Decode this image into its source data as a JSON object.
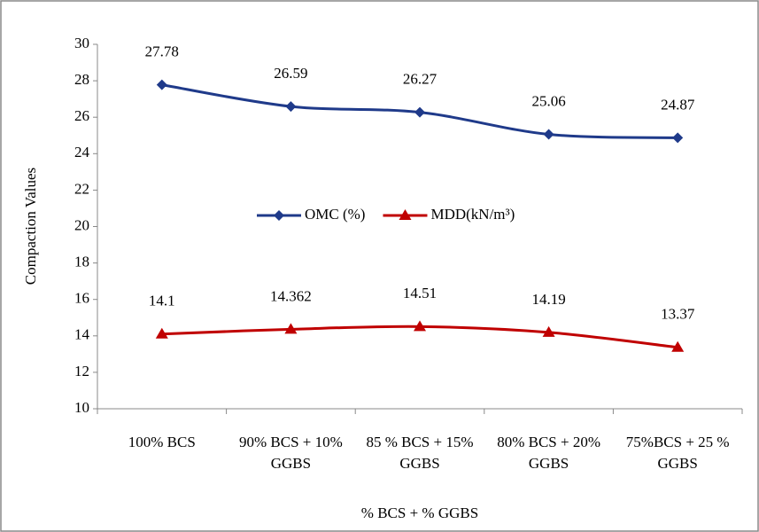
{
  "chart_data": {
    "type": "line",
    "x_label": "% BCS + % GGBS",
    "y_label": "Compaction Values",
    "categories": [
      "100% BCS",
      "90% BCS + 10% GGBS",
      "85 % BCS + 15% GGBS",
      "80% BCS + 20% GGBS",
      "75%BCS + 25 % GGBS"
    ],
    "series": [
      {
        "name": "OMC (%)",
        "color": "#1f3a8a",
        "marker": "diamond",
        "values": [
          27.78,
          26.59,
          26.27,
          25.06,
          24.87
        ]
      },
      {
        "name": "MDD(kN/m³)",
        "color": "#c00000",
        "marker": "triangle",
        "values": [
          14.1,
          14.362,
          14.51,
          14.19,
          13.37
        ]
      }
    ],
    "ylim": [
      10,
      30
    ],
    "yticks": [
      10,
      12,
      14,
      16,
      18,
      20,
      22,
      24,
      26,
      28,
      30
    ],
    "grid": false,
    "legend": "center",
    "smooth": true,
    "data_labels": true
  }
}
